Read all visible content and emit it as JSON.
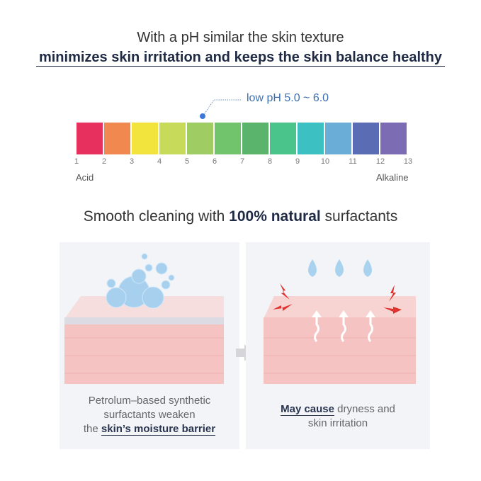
{
  "header": {
    "line1": "With a pH similar the skin texture",
    "line2": "minimizes skin irritation and keeps the skin balance healthy"
  },
  "ph_scale": {
    "callout": "low pH 5.0 ~ 6.0",
    "callout_value": 5.5,
    "numbers": [
      "1",
      "2",
      "3",
      "4",
      "5",
      "6",
      "7",
      "8",
      "9",
      "10",
      "11",
      "12",
      "13"
    ],
    "left_label": "Acid",
    "right_label": "Alkaline",
    "colors": [
      "#e8305f",
      "#f08850",
      "#f2e43c",
      "#c8da5a",
      "#a0cc64",
      "#72c46c",
      "#5ab46c",
      "#4ac48a",
      "#3cc0c2",
      "#6aaed8",
      "#5a6cb4",
      "#7c6cb4"
    ],
    "accent": "#3d6fb0"
  },
  "section2": {
    "pre": "Smooth cleaning with ",
    "bold": "100% natural",
    "post": " surfactants"
  },
  "panels": [
    {
      "line1": "Petrolum–based synthetic",
      "line2": "surfactants weaken",
      "line3_pre": "the ",
      "line3_bold": "skin’s moisture barrier"
    },
    {
      "line1_bold": "May cause",
      "line1_post": " dryness and",
      "line2": "skin irritation"
    }
  ]
}
